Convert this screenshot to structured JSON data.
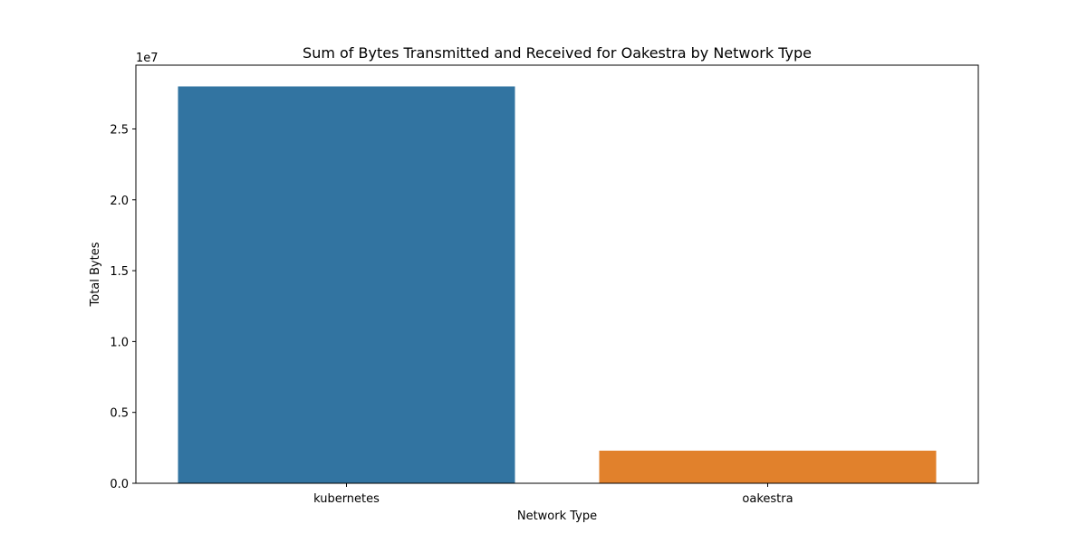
{
  "chart_data": {
    "type": "bar",
    "title": "Sum of Bytes Transmitted and Received for Oakestra by Network Type",
    "xlabel": "Network Type",
    "ylabel": "Total Bytes",
    "categories": [
      "kubernetes",
      "oakestra"
    ],
    "values": [
      28000000,
      2300000
    ],
    "colors": [
      "#3274a1",
      "#e1812c"
    ],
    "ylim": [
      0,
      29500000
    ],
    "yticks": [
      0,
      5000000,
      10000000,
      15000000,
      20000000,
      25000000
    ],
    "ytick_labels": [
      "0.0",
      "0.5",
      "1.0",
      "1.5",
      "2.0",
      "2.5"
    ],
    "y_offset_label": "1e7",
    "grid": false,
    "legend": "none"
  }
}
